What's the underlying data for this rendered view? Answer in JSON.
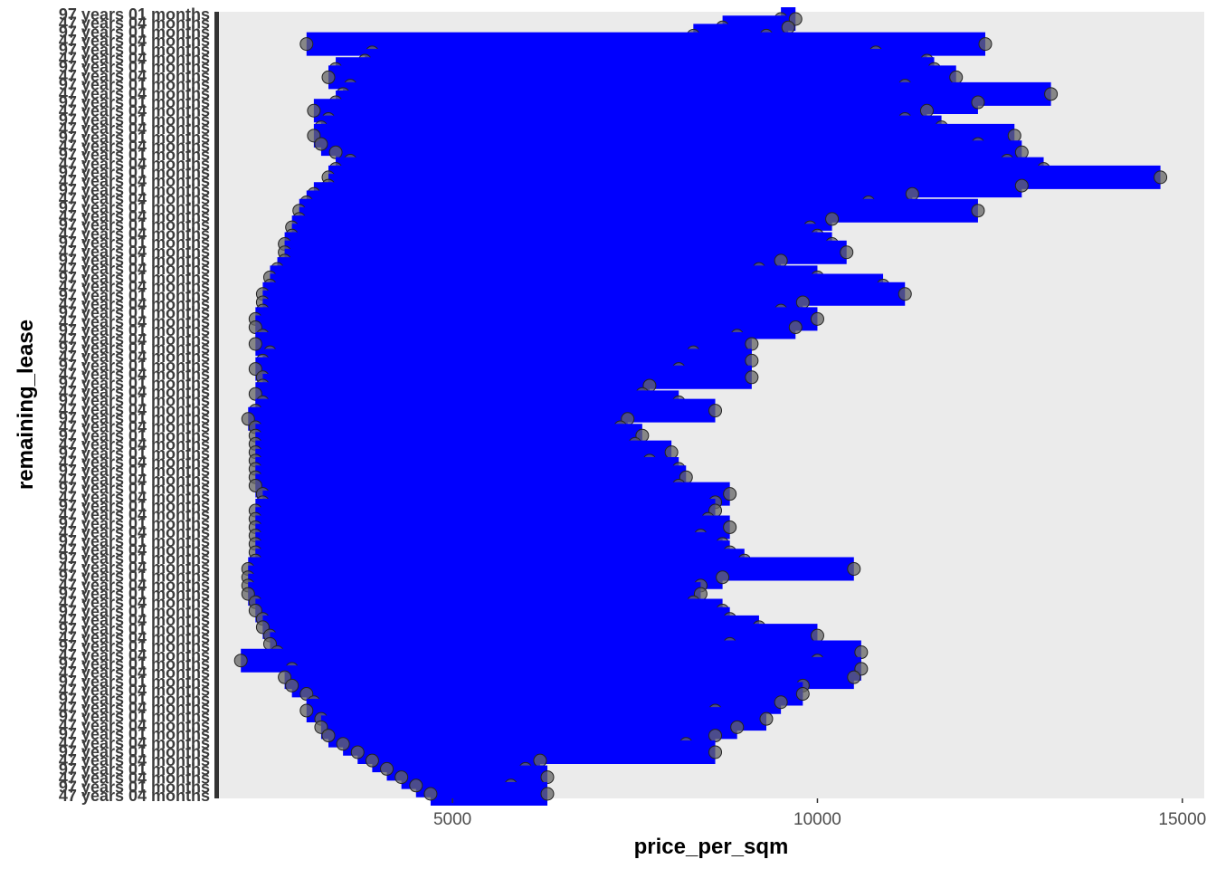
{
  "chart_data": {
    "type": "dumbbell",
    "xlabel": "price_per_sqm",
    "ylabel": "remaining_lease",
    "xlim": [
      1800,
      15300
    ],
    "x_ticks": [
      5000,
      10000,
      15000
    ],
    "x_tick_labels": [
      "5000",
      "10000",
      "15000"
    ],
    "y_tick_labels_visible": [
      "97 years 01 months",
      "47 years 04 months"
    ],
    "grid": false,
    "legend": "none",
    "segment_color": "#0000ff",
    "point_color": "#666666",
    "panel_color": "#ebebeb",
    "rows": [
      {
        "min": 9500,
        "max": 9700
      },
      {
        "min": 8700,
        "max": 9600
      },
      {
        "min": 8300,
        "max": 9300
      },
      {
        "min": 3000,
        "max": 12300
      },
      {
        "min": 3900,
        "max": 10800
      },
      {
        "min": 3800,
        "max": 11500
      },
      {
        "min": 3400,
        "max": 11600
      },
      {
        "min": 3300,
        "max": 11900
      },
      {
        "min": 3600,
        "max": 11200
      },
      {
        "min": 3500,
        "max": 13200
      },
      {
        "min": 3400,
        "max": 12200
      },
      {
        "min": 3100,
        "max": 11500
      },
      {
        "min": 3300,
        "max": 11200
      },
      {
        "min": 3200,
        "max": 11700
      },
      {
        "min": 3100,
        "max": 12700
      },
      {
        "min": 3200,
        "max": 12200
      },
      {
        "min": 3400,
        "max": 12800
      },
      {
        "min": 3600,
        "max": 12600
      },
      {
        "min": 3400,
        "max": 13100
      },
      {
        "min": 3300,
        "max": 14700
      },
      {
        "min": 3300,
        "max": 12800
      },
      {
        "min": 3100,
        "max": 11300
      },
      {
        "min": 3000,
        "max": 10700
      },
      {
        "min": 2900,
        "max": 12200
      },
      {
        "min": 2900,
        "max": 10200
      },
      {
        "min": 2800,
        "max": 9900
      },
      {
        "min": 2800,
        "max": 10000
      },
      {
        "min": 2700,
        "max": 10200
      },
      {
        "min": 2700,
        "max": 10400
      },
      {
        "min": 2700,
        "max": 9500
      },
      {
        "min": 2600,
        "max": 9200
      },
      {
        "min": 2500,
        "max": 10000
      },
      {
        "min": 2500,
        "max": 10900
      },
      {
        "min": 2400,
        "max": 11200
      },
      {
        "min": 2400,
        "max": 9800
      },
      {
        "min": 2400,
        "max": 9500
      },
      {
        "min": 2300,
        "max": 10000
      },
      {
        "min": 2300,
        "max": 9700
      },
      {
        "min": 2400,
        "max": 8900
      },
      {
        "min": 2300,
        "max": 9100
      },
      {
        "min": 2500,
        "max": 8300
      },
      {
        "min": 2400,
        "max": 9100
      },
      {
        "min": 2300,
        "max": 8100
      },
      {
        "min": 2400,
        "max": 9100
      },
      {
        "min": 2400,
        "max": 7700
      },
      {
        "min": 2300,
        "max": 7600
      },
      {
        "min": 2400,
        "max": 8100
      },
      {
        "min": 2300,
        "max": 8600
      },
      {
        "min": 2200,
        "max": 7400
      },
      {
        "min": 2300,
        "max": 7300
      },
      {
        "min": 2300,
        "max": 7600
      },
      {
        "min": 2300,
        "max": 7500
      },
      {
        "min": 2300,
        "max": 8000
      },
      {
        "min": 2300,
        "max": 7700
      },
      {
        "min": 2300,
        "max": 8100
      },
      {
        "min": 2300,
        "max": 8200
      },
      {
        "min": 2300,
        "max": 8100
      },
      {
        "min": 2400,
        "max": 8800
      },
      {
        "min": 2400,
        "max": 8600
      },
      {
        "min": 2300,
        "max": 8600
      },
      {
        "min": 2300,
        "max": 8500
      },
      {
        "min": 2300,
        "max": 8800
      },
      {
        "min": 2300,
        "max": 8400
      },
      {
        "min": 2300,
        "max": 8700
      },
      {
        "min": 2300,
        "max": 8800
      },
      {
        "min": 2300,
        "max": 9000
      },
      {
        "min": 2200,
        "max": 10500
      },
      {
        "min": 2200,
        "max": 8700
      },
      {
        "min": 2200,
        "max": 8400
      },
      {
        "min": 2200,
        "max": 8400
      },
      {
        "min": 2300,
        "max": 8300
      },
      {
        "min": 2300,
        "max": 8700
      },
      {
        "min": 2400,
        "max": 8800
      },
      {
        "min": 2400,
        "max": 9200
      },
      {
        "min": 2500,
        "max": 10000
      },
      {
        "min": 2500,
        "max": 8800
      },
      {
        "min": 2600,
        "max": 10600
      },
      {
        "min": 2100,
        "max": 10000
      },
      {
        "min": 2800,
        "max": 10600
      },
      {
        "min": 2700,
        "max": 10500
      },
      {
        "min": 2800,
        "max": 9800
      },
      {
        "min": 3000,
        "max": 9800
      },
      {
        "min": 3100,
        "max": 9500
      },
      {
        "min": 3000,
        "max": 8600
      },
      {
        "min": 3200,
        "max": 9300
      },
      {
        "min": 3200,
        "max": 8900
      },
      {
        "min": 3300,
        "max": 8600
      },
      {
        "min": 3500,
        "max": 8200
      },
      {
        "min": 3700,
        "max": 8600
      },
      {
        "min": 3900,
        "max": 6200
      },
      {
        "min": 4100,
        "max": 6000
      },
      {
        "min": 4300,
        "max": 6300
      },
      {
        "min": 4500,
        "max": 5800
      },
      {
        "min": 4700,
        "max": 6300
      }
    ]
  }
}
